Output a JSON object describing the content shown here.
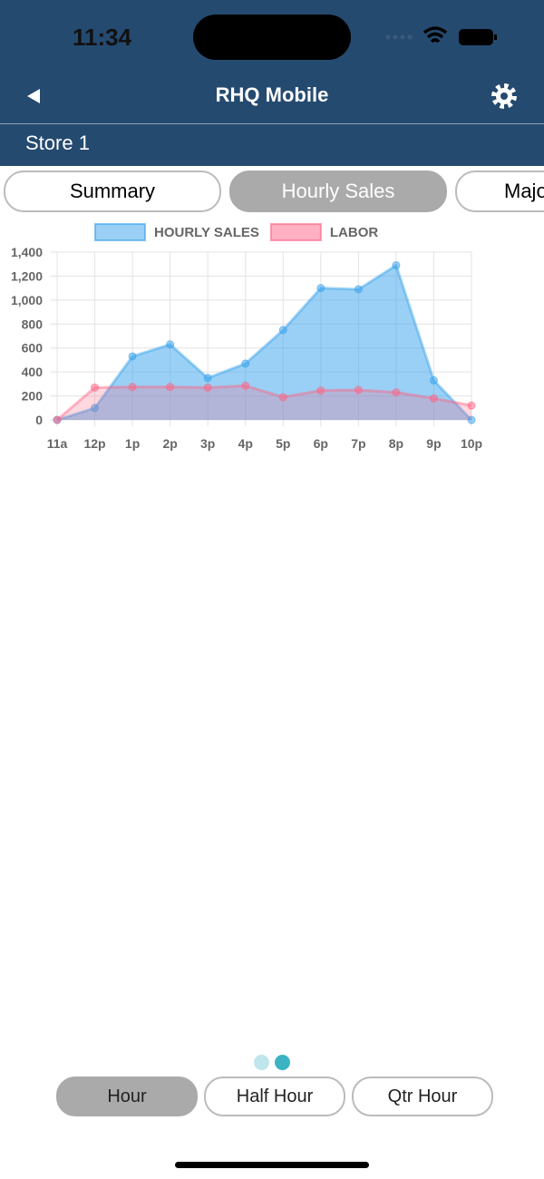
{
  "status_bar": {
    "time": "11:34"
  },
  "header": {
    "title": "RHQ Mobile",
    "store": "Store 1"
  },
  "tabs": [
    {
      "label": "Summary",
      "selected": false
    },
    {
      "label": "Hourly Sales",
      "selected": true
    },
    {
      "label": "Majo",
      "selected": false
    }
  ],
  "chart_data": {
    "type": "area",
    "categories": [
      "11a",
      "12p",
      "1p",
      "2p",
      "3p",
      "4p",
      "5p",
      "6p",
      "7p",
      "8p",
      "9p",
      "10p"
    ],
    "series": [
      {
        "name": "HOURLY SALES",
        "color": "#36a2eb",
        "values": [
          0,
          100,
          530,
          630,
          350,
          470,
          750,
          1100,
          1090,
          1290,
          330,
          0
        ]
      },
      {
        "name": "LABOR",
        "color": "#ff6384",
        "values": [
          0,
          270,
          275,
          275,
          270,
          285,
          190,
          245,
          250,
          230,
          180,
          120
        ]
      }
    ],
    "ylim": [
      0,
      1400
    ],
    "yticks": [
      0,
      200,
      400,
      600,
      800,
      {
        "value": 1000,
        "label": "1,000"
      },
      {
        "value": 1200,
        "label": "1,200"
      },
      {
        "value": 1400,
        "label": "1,400"
      }
    ],
    "grid": true,
    "legend": "top"
  },
  "interval_buttons": [
    {
      "label": "Hour",
      "selected": true
    },
    {
      "label": "Half Hour",
      "selected": false
    },
    {
      "label": "Qtr Hour",
      "selected": false
    }
  ]
}
